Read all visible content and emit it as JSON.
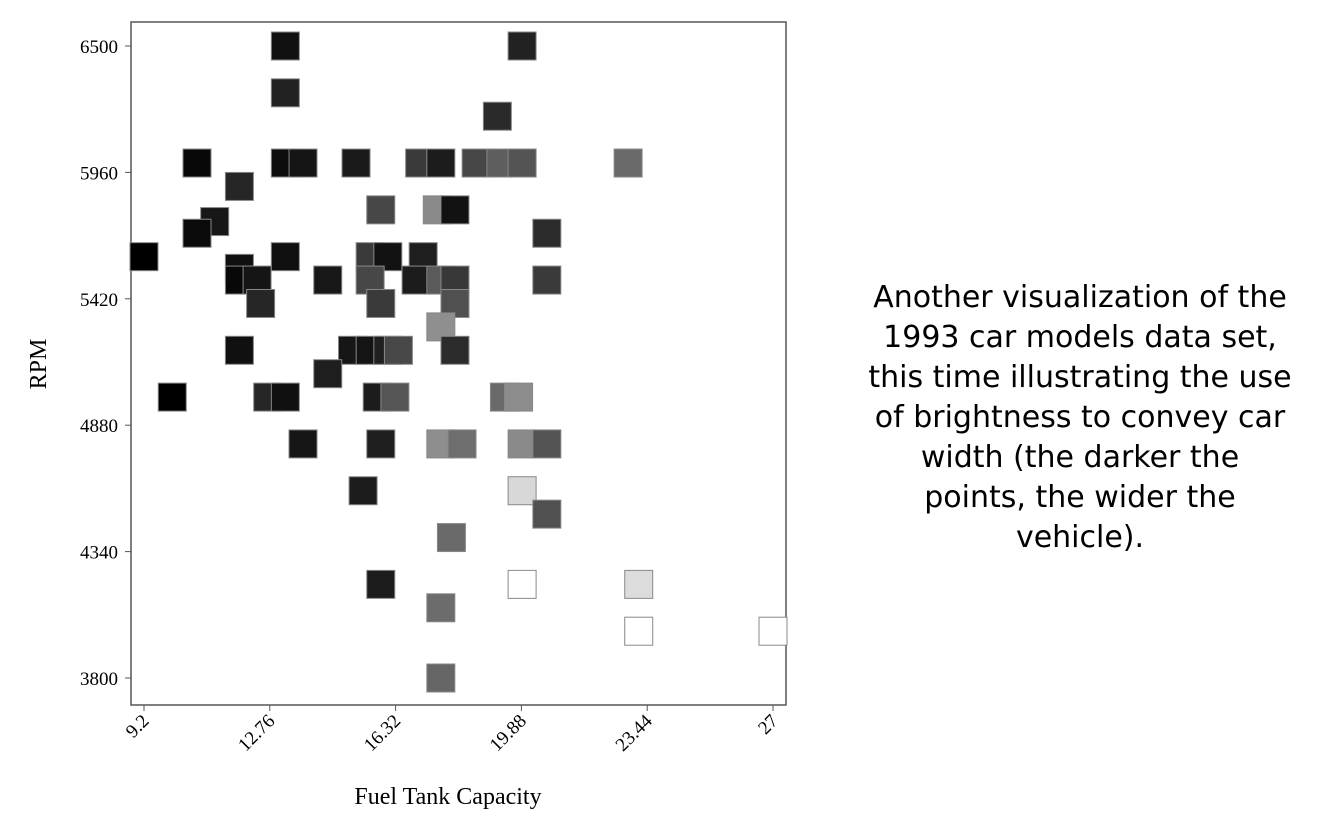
{
  "chart_data": {
    "type": "scatter",
    "title": "",
    "xlabel": "Fuel Tank Capacity",
    "ylabel": "RPM",
    "xlim": [
      9.2,
      27
    ],
    "ylim": [
      3800,
      6500
    ],
    "x_ticks": [
      "9.2",
      "12.76",
      "16.32",
      "19.88",
      "23.44",
      "27"
    ],
    "y_ticks": [
      "6500",
      "5960",
      "5420",
      "4880",
      "4340",
      "3800"
    ],
    "marker": "square",
    "brightness_encodes": "car width (darker = wider)",
    "points": [
      {
        "x": 13.2,
        "y": 6500,
        "shade": "#111111"
      },
      {
        "x": 19.9,
        "y": 6500,
        "shade": "#222222"
      },
      {
        "x": 13.2,
        "y": 6300,
        "shade": "#222222"
      },
      {
        "x": 19.2,
        "y": 6200,
        "shade": "#2a2a2a"
      },
      {
        "x": 10.7,
        "y": 6000,
        "shade": "#080808"
      },
      {
        "x": 13.2,
        "y": 6000,
        "shade": "#0d0d0d"
      },
      {
        "x": 13.7,
        "y": 6000,
        "shade": "#151515"
      },
      {
        "x": 15.2,
        "y": 6000,
        "shade": "#1a1a1a"
      },
      {
        "x": 17.0,
        "y": 6000,
        "shade": "#3a3a3a"
      },
      {
        "x": 17.6,
        "y": 6000,
        "shade": "#1c1c1c"
      },
      {
        "x": 18.6,
        "y": 6000,
        "shade": "#474747"
      },
      {
        "x": 19.3,
        "y": 6000,
        "shade": "#5e5e5e"
      },
      {
        "x": 19.9,
        "y": 6000,
        "shade": "#545454"
      },
      {
        "x": 22.9,
        "y": 6000,
        "shade": "#6a6a6a"
      },
      {
        "x": 11.9,
        "y": 5900,
        "shade": "#262626"
      },
      {
        "x": 11.2,
        "y": 5750,
        "shade": "#171717"
      },
      {
        "x": 15.9,
        "y": 5800,
        "shade": "#474747"
      },
      {
        "x": 17.5,
        "y": 5800,
        "shade": "#8a8a8a"
      },
      {
        "x": 18.0,
        "y": 5800,
        "shade": "#121212"
      },
      {
        "x": 10.7,
        "y": 5700,
        "shade": "#0a0a0a"
      },
      {
        "x": 20.6,
        "y": 5700,
        "shade": "#2c2c2c"
      },
      {
        "x": 9.2,
        "y": 5600,
        "shade": "#000000"
      },
      {
        "x": 11.9,
        "y": 5550,
        "shade": "#101010"
      },
      {
        "x": 13.2,
        "y": 5600,
        "shade": "#0f0f0f"
      },
      {
        "x": 15.6,
        "y": 5600,
        "shade": "#3a3a3a"
      },
      {
        "x": 16.1,
        "y": 5600,
        "shade": "#121212"
      },
      {
        "x": 17.1,
        "y": 5600,
        "shade": "#1e1e1e"
      },
      {
        "x": 11.9,
        "y": 5500,
        "shade": "#080808"
      },
      {
        "x": 12.4,
        "y": 5500,
        "shade": "#151515"
      },
      {
        "x": 14.4,
        "y": 5500,
        "shade": "#181818"
      },
      {
        "x": 15.6,
        "y": 5500,
        "shade": "#474747"
      },
      {
        "x": 16.9,
        "y": 5500,
        "shade": "#1c1c1c"
      },
      {
        "x": 17.6,
        "y": 5500,
        "shade": "#5a5a5a"
      },
      {
        "x": 18.0,
        "y": 5500,
        "shade": "#383838"
      },
      {
        "x": 20.6,
        "y": 5500,
        "shade": "#3a3a3a"
      },
      {
        "x": 12.5,
        "y": 5400,
        "shade": "#262626"
      },
      {
        "x": 15.9,
        "y": 5400,
        "shade": "#3a3a3a"
      },
      {
        "x": 18.0,
        "y": 5400,
        "shade": "#505050"
      },
      {
        "x": 17.6,
        "y": 5300,
        "shade": "#8f8f8f"
      },
      {
        "x": 11.9,
        "y": 5200,
        "shade": "#101010"
      },
      {
        "x": 15.1,
        "y": 5200,
        "shade": "#161616"
      },
      {
        "x": 15.6,
        "y": 5200,
        "shade": "#141414"
      },
      {
        "x": 16.1,
        "y": 5200,
        "shade": "#202020"
      },
      {
        "x": 16.4,
        "y": 5200,
        "shade": "#484848"
      },
      {
        "x": 18.0,
        "y": 5200,
        "shade": "#2c2c2c"
      },
      {
        "x": 14.4,
        "y": 5100,
        "shade": "#1e1e1e"
      },
      {
        "x": 10.0,
        "y": 5000,
        "shade": "#000000"
      },
      {
        "x": 12.7,
        "y": 5000,
        "shade": "#262626"
      },
      {
        "x": 13.2,
        "y": 5000,
        "shade": "#101010"
      },
      {
        "x": 15.8,
        "y": 5000,
        "shade": "#1c1c1c"
      },
      {
        "x": 16.3,
        "y": 5000,
        "shade": "#555555"
      },
      {
        "x": 19.4,
        "y": 5000,
        "shade": "#6a6a6a"
      },
      {
        "x": 19.8,
        "y": 5000,
        "shade": "#8c8c8c"
      },
      {
        "x": 13.7,
        "y": 4800,
        "shade": "#161616"
      },
      {
        "x": 15.9,
        "y": 4800,
        "shade": "#1e1e1e"
      },
      {
        "x": 17.6,
        "y": 4800,
        "shade": "#8e8e8e"
      },
      {
        "x": 18.2,
        "y": 4800,
        "shade": "#6e6e6e"
      },
      {
        "x": 19.9,
        "y": 4800,
        "shade": "#8a8a8a"
      },
      {
        "x": 20.6,
        "y": 4800,
        "shade": "#545454"
      },
      {
        "x": 15.4,
        "y": 4600,
        "shade": "#1c1c1c"
      },
      {
        "x": 19.9,
        "y": 4600,
        "shade": "#d8d8d8"
      },
      {
        "x": 20.6,
        "y": 4500,
        "shade": "#505050"
      },
      {
        "x": 17.9,
        "y": 4400,
        "shade": "#6a6a6a"
      },
      {
        "x": 15.9,
        "y": 4200,
        "shade": "#1c1c1c"
      },
      {
        "x": 19.9,
        "y": 4200,
        "shade": "#ffffff"
      },
      {
        "x": 23.2,
        "y": 4200,
        "shade": "#dcdcdc"
      },
      {
        "x": 17.6,
        "y": 4100,
        "shade": "#6c6c6c"
      },
      {
        "x": 23.2,
        "y": 4000,
        "shade": "#ffffff"
      },
      {
        "x": 27.0,
        "y": 4000,
        "shade": "#ffffff"
      },
      {
        "x": 17.6,
        "y": 3800,
        "shade": "#666666"
      }
    ]
  },
  "caption": "Another visualization of the\n1993 car models data set,\nthis time illustrating the use\nof brightness to convey car\nwidth (the darker the\npoints, the wider the\nvehicle)."
}
